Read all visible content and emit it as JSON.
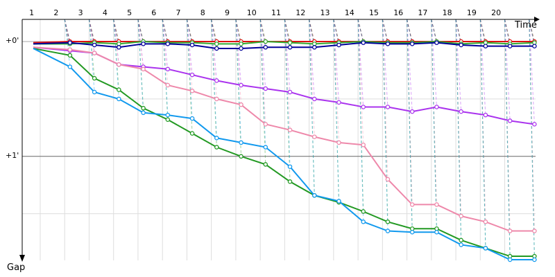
{
  "chart_data": {
    "type": "line",
    "xlabel": "Time",
    "ylabel": "Gap",
    "x_ticks": [
      "1",
      "2",
      "3",
      "4",
      "5",
      "6",
      "7",
      "8",
      "9",
      "10",
      "11",
      "12",
      "13",
      "14",
      "15",
      "16",
      "17",
      "18",
      "19",
      "20"
    ],
    "y_ticks": [
      "+0'",
      "+1'"
    ],
    "y_tick_values": [
      0,
      1
    ],
    "y_minor_gridlines": [
      0.5,
      1.5
    ],
    "ylim": [
      0,
      1.9
    ],
    "xlim": [
      0.5,
      21.5
    ],
    "grid": true,
    "series": [
      {
        "color": "#dd1111",
        "points": [
          [
            0.5,
            0.01
          ],
          [
            2,
            0.0
          ],
          [
            3,
            0.0
          ],
          [
            4,
            0.0
          ],
          [
            5,
            0.0
          ],
          [
            6,
            0.0
          ],
          [
            7,
            0.0
          ],
          [
            8,
            0.0
          ],
          [
            9,
            0.0
          ],
          [
            10,
            0.0
          ],
          [
            11,
            0.0
          ],
          [
            12,
            0.0
          ],
          [
            13,
            0.0
          ],
          [
            14,
            0.0
          ],
          [
            15,
            0.0
          ],
          [
            16,
            0.0
          ],
          [
            17,
            0.0
          ],
          [
            18,
            0.0
          ],
          [
            19,
            0.0
          ],
          [
            20,
            0.0
          ],
          [
            21,
            0.0
          ]
        ]
      },
      {
        "color": "#33aa33",
        "points": [
          [
            0.5,
            0.02
          ],
          [
            2,
            0.02
          ],
          [
            3,
            0.01
          ],
          [
            4,
            0.02
          ],
          [
            5,
            0.0
          ],
          [
            6,
            0.01
          ],
          [
            7,
            0.01
          ],
          [
            8,
            0.02
          ],
          [
            9,
            0.02
          ],
          [
            10,
            0.0
          ],
          [
            11,
            0.01
          ],
          [
            12,
            0.02
          ],
          [
            13,
            0.01
          ],
          [
            14,
            0.0
          ],
          [
            15,
            0.01
          ],
          [
            16,
            0.01
          ],
          [
            17,
            0.0
          ],
          [
            18,
            0.02
          ],
          [
            19,
            0.01
          ],
          [
            20,
            0.02
          ],
          [
            21,
            0.01
          ]
        ]
      },
      {
        "color": "#000099",
        "points": [
          [
            0.5,
            0.02
          ],
          [
            2,
            0.01
          ],
          [
            3,
            0.03
          ],
          [
            4,
            0.05
          ],
          [
            5,
            0.02
          ],
          [
            6,
            0.02
          ],
          [
            7,
            0.03
          ],
          [
            8,
            0.06
          ],
          [
            9,
            0.06
          ],
          [
            10,
            0.05
          ],
          [
            11,
            0.05
          ],
          [
            12,
            0.05
          ],
          [
            13,
            0.03
          ],
          [
            14,
            0.01
          ],
          [
            15,
            0.02
          ],
          [
            16,
            0.02
          ],
          [
            17,
            0.01
          ],
          [
            18,
            0.03
          ],
          [
            19,
            0.04
          ],
          [
            20,
            0.04
          ],
          [
            21,
            0.04
          ]
        ]
      },
      {
        "color": "#aa33ee",
        "points": [
          [
            0.5,
            0.05
          ],
          [
            2,
            0.08
          ],
          [
            3,
            0.1
          ],
          [
            4,
            0.2
          ],
          [
            5,
            0.22
          ],
          [
            6,
            0.24
          ],
          [
            7,
            0.29
          ],
          [
            8,
            0.34
          ],
          [
            9,
            0.38
          ],
          [
            10,
            0.41
          ],
          [
            11,
            0.44
          ],
          [
            12,
            0.5
          ],
          [
            13,
            0.53
          ],
          [
            14,
            0.57
          ],
          [
            15,
            0.57
          ],
          [
            16,
            0.61
          ],
          [
            17,
            0.57
          ],
          [
            18,
            0.61
          ],
          [
            19,
            0.64
          ],
          [
            20,
            0.69
          ],
          [
            21,
            0.72
          ]
        ]
      },
      {
        "color": "#ee88aa",
        "points": [
          [
            0.5,
            0.05
          ],
          [
            2,
            0.07
          ],
          [
            3,
            0.1
          ],
          [
            4,
            0.2
          ],
          [
            5,
            0.24
          ],
          [
            6,
            0.38
          ],
          [
            7,
            0.43
          ],
          [
            8,
            0.5
          ],
          [
            9,
            0.55
          ],
          [
            10,
            0.72
          ],
          [
            11,
            0.77
          ],
          [
            12,
            0.83
          ],
          [
            13,
            0.88
          ],
          [
            14,
            0.9
          ],
          [
            15,
            1.2
          ],
          [
            16,
            1.42
          ],
          [
            17,
            1.42
          ],
          [
            18,
            1.52
          ],
          [
            19,
            1.57
          ],
          [
            20,
            1.65
          ],
          [
            21,
            1.65
          ]
        ]
      },
      {
        "color": "#229922",
        "points": [
          [
            0.5,
            0.06
          ],
          [
            2,
            0.12
          ],
          [
            3,
            0.32
          ],
          [
            4,
            0.42
          ],
          [
            5,
            0.58
          ],
          [
            6,
            0.68
          ],
          [
            7,
            0.8
          ],
          [
            8,
            0.92
          ],
          [
            9,
            1.0
          ],
          [
            10,
            1.07
          ],
          [
            11,
            1.22
          ],
          [
            12,
            1.34
          ],
          [
            13,
            1.4
          ],
          [
            14,
            1.48
          ],
          [
            15,
            1.57
          ],
          [
            16,
            1.63
          ],
          [
            17,
            1.63
          ],
          [
            18,
            1.73
          ],
          [
            19,
            1.8
          ],
          [
            20,
            1.87
          ],
          [
            21,
            1.87
          ]
        ]
      },
      {
        "color": "#1199ee",
        "points": [
          [
            0.5,
            0.06
          ],
          [
            2,
            0.22
          ],
          [
            3,
            0.44
          ],
          [
            4,
            0.5
          ],
          [
            5,
            0.62
          ],
          [
            6,
            0.64
          ],
          [
            7,
            0.67
          ],
          [
            8,
            0.84
          ],
          [
            9,
            0.88
          ],
          [
            10,
            0.92
          ],
          [
            11,
            1.09
          ],
          [
            12,
            1.34
          ],
          [
            13,
            1.39
          ],
          [
            14,
            1.57
          ],
          [
            15,
            1.65
          ],
          [
            16,
            1.66
          ],
          [
            17,
            1.66
          ],
          [
            18,
            1.77
          ],
          [
            19,
            1.8
          ],
          [
            20,
            1.9
          ],
          [
            21,
            1.9
          ]
        ]
      }
    ]
  }
}
